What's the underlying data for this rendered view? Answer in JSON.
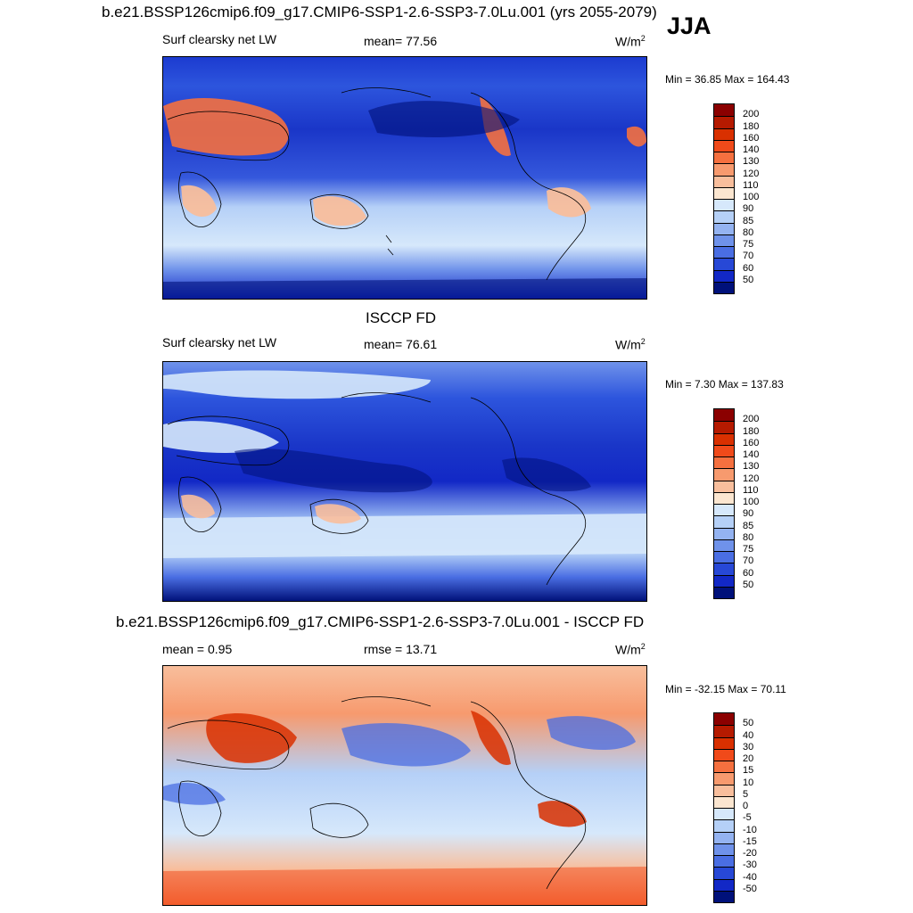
{
  "season": "JJA",
  "panels": [
    {
      "id": "model",
      "title": "b.e21.BSSP126cmip6.f09_g17.CMIP6-SSP1-2.6-SSP3-7.0Lu.001 (yrs 2055-2079)",
      "left_label": "Surf clearsky net LW",
      "center_label": "mean=  77.56",
      "unit": "W/m",
      "unit_sup": "2",
      "minmax": "Min =  36.85 Max = 164.43",
      "colorbar": {
        "labels": [
          "200",
          "180",
          "160",
          "140",
          "130",
          "120",
          "110",
          "100",
          "90",
          "85",
          "80",
          "75",
          "70",
          "60",
          "50"
        ],
        "colors": [
          "#8b0000",
          "#b51a00",
          "#d93000",
          "#f04a1a",
          "#f5703f",
          "#f79a6e",
          "#f8be9c",
          "#fbe6d0",
          "#d6e8fb",
          "#b5d0f7",
          "#94b3f1",
          "#6f92ea",
          "#4a6ee3",
          "#2748d6",
          "#1228c6",
          "#00117a"
        ]
      }
    },
    {
      "id": "obs",
      "title": "ISCCP FD",
      "left_label": "Surf clearsky net LW",
      "center_label": "mean=  76.61",
      "unit": "W/m",
      "unit_sup": "2",
      "minmax": "Min =   7.30 Max = 137.83",
      "colorbar": {
        "labels": [
          "200",
          "180",
          "160",
          "140",
          "130",
          "120",
          "110",
          "100",
          "90",
          "85",
          "80",
          "75",
          "70",
          "60",
          "50"
        ],
        "colors": [
          "#8b0000",
          "#b51a00",
          "#d93000",
          "#f04a1a",
          "#f5703f",
          "#f79a6e",
          "#f8be9c",
          "#fbe6d0",
          "#d6e8fb",
          "#b5d0f7",
          "#94b3f1",
          "#6f92ea",
          "#4a6ee3",
          "#2748d6",
          "#1228c6",
          "#00117a"
        ]
      }
    },
    {
      "id": "diff",
      "title": "b.e21.BSSP126cmip6.f09_g17.CMIP6-SSP1-2.6-SSP3-7.0Lu.001 - ISCCP FD",
      "left_label": "mean =   0.95",
      "center_label": "rmse =  13.71",
      "unit": "W/m",
      "unit_sup": "2",
      "minmax": "Min = -32.15 Max =  70.11",
      "colorbar": {
        "labels": [
          "50",
          "40",
          "30",
          "20",
          "15",
          "10",
          "5",
          "0",
          "-5",
          "-10",
          "-15",
          "-20",
          "-30",
          "-40",
          "-50"
        ],
        "colors": [
          "#8b0000",
          "#b51a00",
          "#d93000",
          "#f04a1a",
          "#f5703f",
          "#f79a6e",
          "#f8be9c",
          "#fbe6d0",
          "#d6e8fb",
          "#b5d0f7",
          "#94b3f1",
          "#6f92ea",
          "#4a6ee3",
          "#2748d6",
          "#1228c6",
          "#00117a"
        ]
      }
    }
  ]
}
